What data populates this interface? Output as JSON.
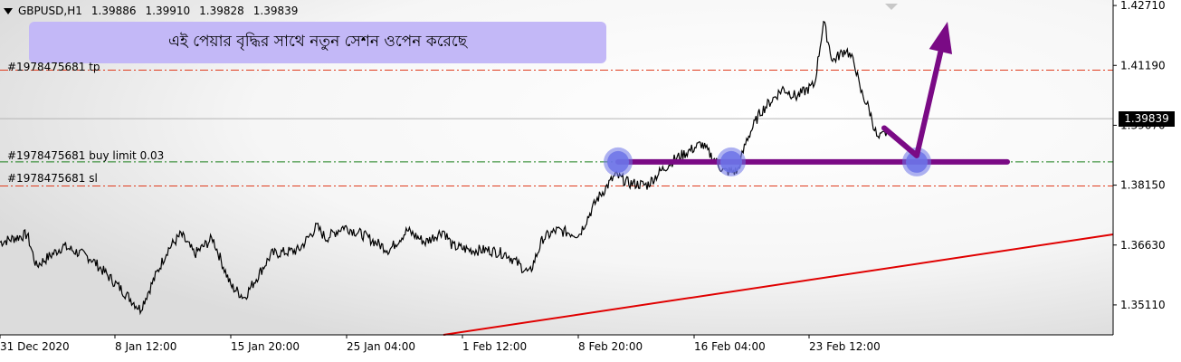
{
  "header": {
    "symbol": "GBPUSD,H1",
    "open": "1.39886",
    "high": "1.39910",
    "low": "1.39828",
    "close": "1.39839"
  },
  "banner_text": "এই পেয়ার বৃদ্ধির সাথে নতুন সেশন ওপেন করেছে",
  "order_lines": {
    "tp_label": "#1978475681 tp",
    "buy_limit_label": "#1978475681 buy limit 0.03",
    "sl_label": "#1978475681 sl"
  },
  "current_price_label": "1.39839",
  "colors": {
    "tp_sl_line": "#e03c1e",
    "buy_limit_line": "#1a7f1a",
    "candles": "#000000",
    "trendline": "#e00000",
    "annotation": "#7a0a85",
    "circle": "#6c73e8",
    "banner": "#c3b8f7"
  },
  "chart_data": {
    "type": "line",
    "title": "GBPUSD,H1",
    "xlabel": "",
    "ylabel": "",
    "ylim": [
      1.3435,
      1.4285
    ],
    "xlim": [
      0,
      1230
    ],
    "grid": false,
    "x_tick_labels": [
      "31 Dec 2020",
      "8 Jan 12:00",
      "15 Jan 20:00",
      "25 Jan 04:00",
      "1 Feb 12:00",
      "8 Feb 20:00",
      "16 Feb 04:00",
      "23 Feb 12:00"
    ],
    "y_tick_labels": [
      "1.42710",
      "1.41190",
      "1.39670",
      "1.38150",
      "1.36630",
      "1.35110"
    ],
    "series": [
      {
        "x": [
          0,
          30,
          40,
          70,
          100,
          130,
          155,
          185,
          200,
          215,
          235,
          255,
          270,
          300,
          330,
          350,
          360,
          380,
          400,
          430,
          450,
          470,
          490,
          500,
          520,
          540,
          560,
          585,
          600,
          615,
          640,
          660,
          680,
          695,
          715,
          730,
          745,
          775,
          800,
          815,
          825,
          840,
          865,
          880,
          900,
          910,
          920,
          935,
          945,
          950,
          960,
          970,
          980
        ],
        "values": [
          1.367,
          1.369,
          1.361,
          1.366,
          1.363,
          1.356,
          1.35,
          1.365,
          1.369,
          1.364,
          1.368,
          1.356,
          1.353,
          1.364,
          1.365,
          1.371,
          1.368,
          1.371,
          1.369,
          1.365,
          1.37,
          1.367,
          1.37,
          1.366,
          1.365,
          1.365,
          1.364,
          1.359,
          1.368,
          1.37,
          1.369,
          1.378,
          1.384,
          1.382,
          1.3815,
          1.385,
          1.388,
          1.392,
          1.385,
          1.385,
          1.393,
          1.4,
          1.406,
          1.404,
          1.407,
          1.423,
          1.413,
          1.416,
          1.412,
          1.406,
          1.401,
          1.393,
          1.395
        ]
      }
    ],
    "horizontal_levels": [
      {
        "label": "#1978475681 tp",
        "value": 1.4107
      },
      {
        "label": "#1978475681 buy limit 0.03",
        "value": 1.3874
      },
      {
        "label": "#1978475681 sl",
        "value": 1.3813
      },
      {
        "label": "1.39839",
        "value": 1.39839
      }
    ],
    "annotations": {
      "level_line": {
        "x": [
          683,
          1113
        ],
        "value": 1.3874
      },
      "touch_points": [
        {
          "x": 683,
          "value": 1.3874
        },
        {
          "x": 808,
          "value": 1.3874
        },
        {
          "x": 1013,
          "value": 1.3874
        }
      ],
      "arrow": {
        "from": [
          977,
          1.396
        ],
        "via": [
          1013,
          1.389
        ],
        "to": [
          1047,
          1.423
        ]
      },
      "trendline": {
        "from": [
          490,
          1.3435
        ],
        "to": [
          1230,
          1.369
        ]
      }
    }
  }
}
